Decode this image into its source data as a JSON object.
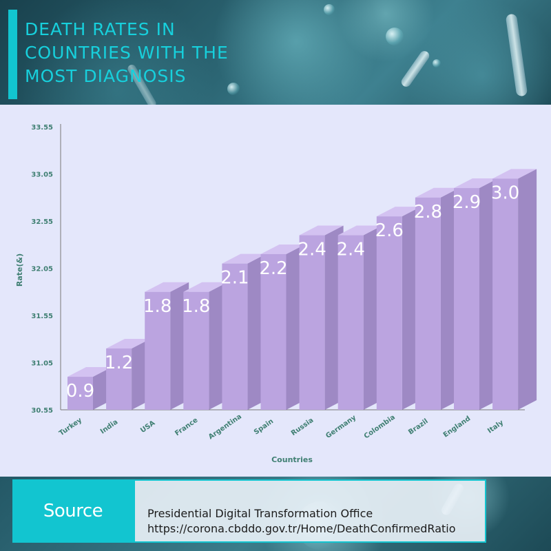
{
  "header": {
    "title": "DEATH RATES IN COUNTRIES WITH THE MOST DIAGNOSIS"
  },
  "colors": {
    "accent": "#12c5d0",
    "title_text": "#17d0dc",
    "bar_front": "#bba4e0",
    "bar_side": "#9e89c4",
    "bar_top": "#d3c2f1",
    "axis_label": "#3f7f72",
    "panel_bg": "#e4e7fb"
  },
  "chart_data": {
    "type": "bar",
    "title": "DEATH RATES IN COUNTRIES WITH THE MOST DIAGNOSIS",
    "xlabel": "Countries",
    "ylabel": "Rate(&)",
    "categories": [
      "Turkey",
      "India",
      "USA",
      "France",
      "Argentina",
      "Spain",
      "Russia",
      "Germany",
      "Colombia",
      "Brazil",
      "England",
      "Italy"
    ],
    "values": [
      0.9,
      1.2,
      1.8,
      1.8,
      2.1,
      2.2,
      2.4,
      2.4,
      2.6,
      2.8,
      2.9,
      3.0
    ],
    "data_labels": [
      "0.9",
      "1.2",
      "1.8",
      "1.8",
      "2.1",
      "2.2",
      "2.4",
      "2.4",
      "2.6",
      "2.8",
      "2.9",
      "3.0"
    ],
    "y_ticks": [
      "30.55",
      "31.05",
      "31.55",
      "32.05",
      "32.55",
      "33.05",
      "33.55"
    ],
    "ylim": [
      0.55,
      3.55
    ],
    "grid": false,
    "legend": "none"
  },
  "footer": {
    "source_title": "Source",
    "source_line1": "Presidential Digital Transformation Office",
    "source_line2": "https://corona.cbddo.gov.tr/Home/DeathConfirmedRatio"
  }
}
